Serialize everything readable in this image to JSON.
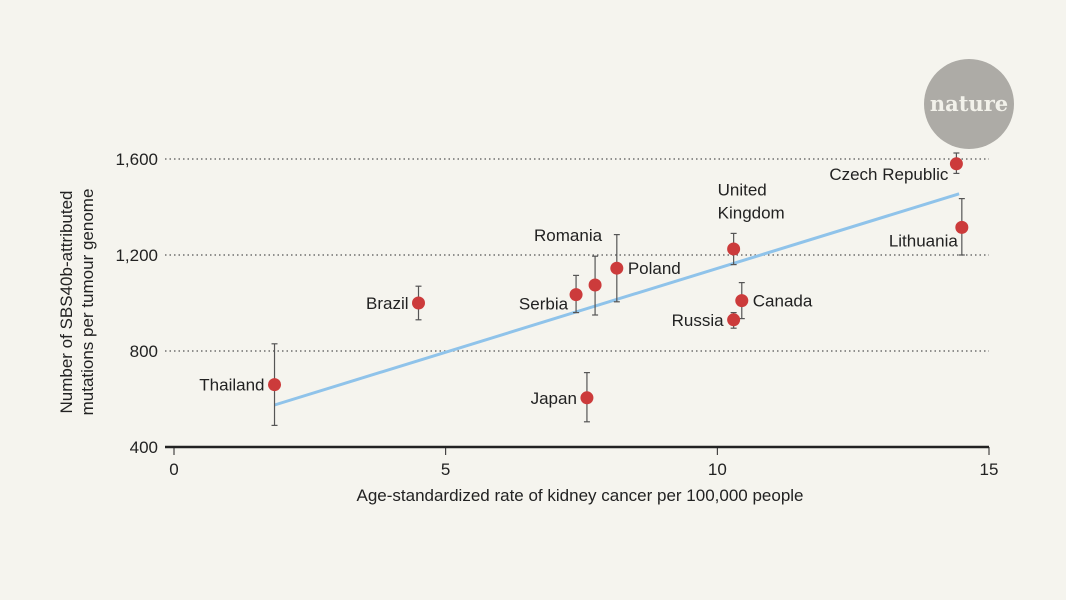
{
  "chart_data": {
    "type": "scatter",
    "title": "",
    "xlabel": "Age-standardized rate of kidney cancer per 100,000 people",
    "ylabel": [
      "Number of SBS40b-attributed",
      "mutations per tumour genome"
    ],
    "xlim": [
      0,
      15
    ],
    "ylim": [
      400,
      1600
    ],
    "xticks": [
      {
        "v": 0,
        "label": "0"
      },
      {
        "v": 5,
        "label": "5"
      },
      {
        "v": 10,
        "label": "10"
      },
      {
        "v": 15,
        "label": "15"
      }
    ],
    "yticks": [
      {
        "v": 400,
        "label": "400"
      },
      {
        "v": 800,
        "label": "800"
      },
      {
        "v": 1200,
        "label": "1,200"
      },
      {
        "v": 1600,
        "label": "1,600"
      }
    ],
    "grid": "horizontal-dotted",
    "points": [
      {
        "name": "Thailand",
        "x": 1.85,
        "y": 660,
        "lo": 490,
        "hi": 830,
        "label": [
          "Thailand"
        ],
        "pos": "left"
      },
      {
        "name": "Brazil",
        "x": 4.5,
        "y": 1000,
        "lo": 930,
        "hi": 1070,
        "label": [
          "Brazil"
        ],
        "pos": "left"
      },
      {
        "name": "Serbia",
        "x": 7.4,
        "y": 1035,
        "lo": 960,
        "hi": 1115,
        "label": [
          "Serbia"
        ],
        "pos": "left-below"
      },
      {
        "name": "Romania",
        "x": 7.75,
        "y": 1075,
        "lo": 950,
        "hi": 1195,
        "label": [
          "Romania"
        ],
        "pos": "above-left"
      },
      {
        "name": "Poland",
        "x": 8.15,
        "y": 1145,
        "lo": 1005,
        "hi": 1285,
        "label": [
          "Poland"
        ],
        "pos": "right"
      },
      {
        "name": "Japan",
        "x": 7.6,
        "y": 605,
        "lo": 505,
        "hi": 710,
        "label": [
          "Japan"
        ],
        "pos": "left"
      },
      {
        "name": "United Kingdom",
        "x": 10.3,
        "y": 1225,
        "lo": 1160,
        "hi": 1290,
        "label": [
          "United",
          "Kingdom"
        ],
        "pos": "above"
      },
      {
        "name": "Canada",
        "x": 10.45,
        "y": 1010,
        "lo": 935,
        "hi": 1085,
        "label": [
          "Canada"
        ],
        "pos": "right"
      },
      {
        "name": "Russia",
        "x": 10.3,
        "y": 930,
        "lo": 895,
        "hi": 960,
        "label": [
          "Russia"
        ],
        "pos": "left"
      },
      {
        "name": "Czech Republic",
        "x": 14.4,
        "y": 1580,
        "lo": 1540,
        "hi": 1625,
        "label": [
          "Czech Republic"
        ],
        "pos": "left-below"
      },
      {
        "name": "Lithuania",
        "x": 14.5,
        "y": 1315,
        "lo": 1200,
        "hi": 1435,
        "label": [
          "Lithuania"
        ],
        "pos": "left-below"
      }
    ],
    "trendline": {
      "x0": 1.85,
      "y0": 575,
      "x1": 14.45,
      "y1": 1455
    },
    "colors": {
      "point": "#cc3b3b",
      "trend": "#8fc3ea",
      "error": "#555555",
      "axis": "#222222",
      "grid": "#555555"
    }
  },
  "logo": {
    "text": "nature",
    "color": "#adaba6"
  }
}
